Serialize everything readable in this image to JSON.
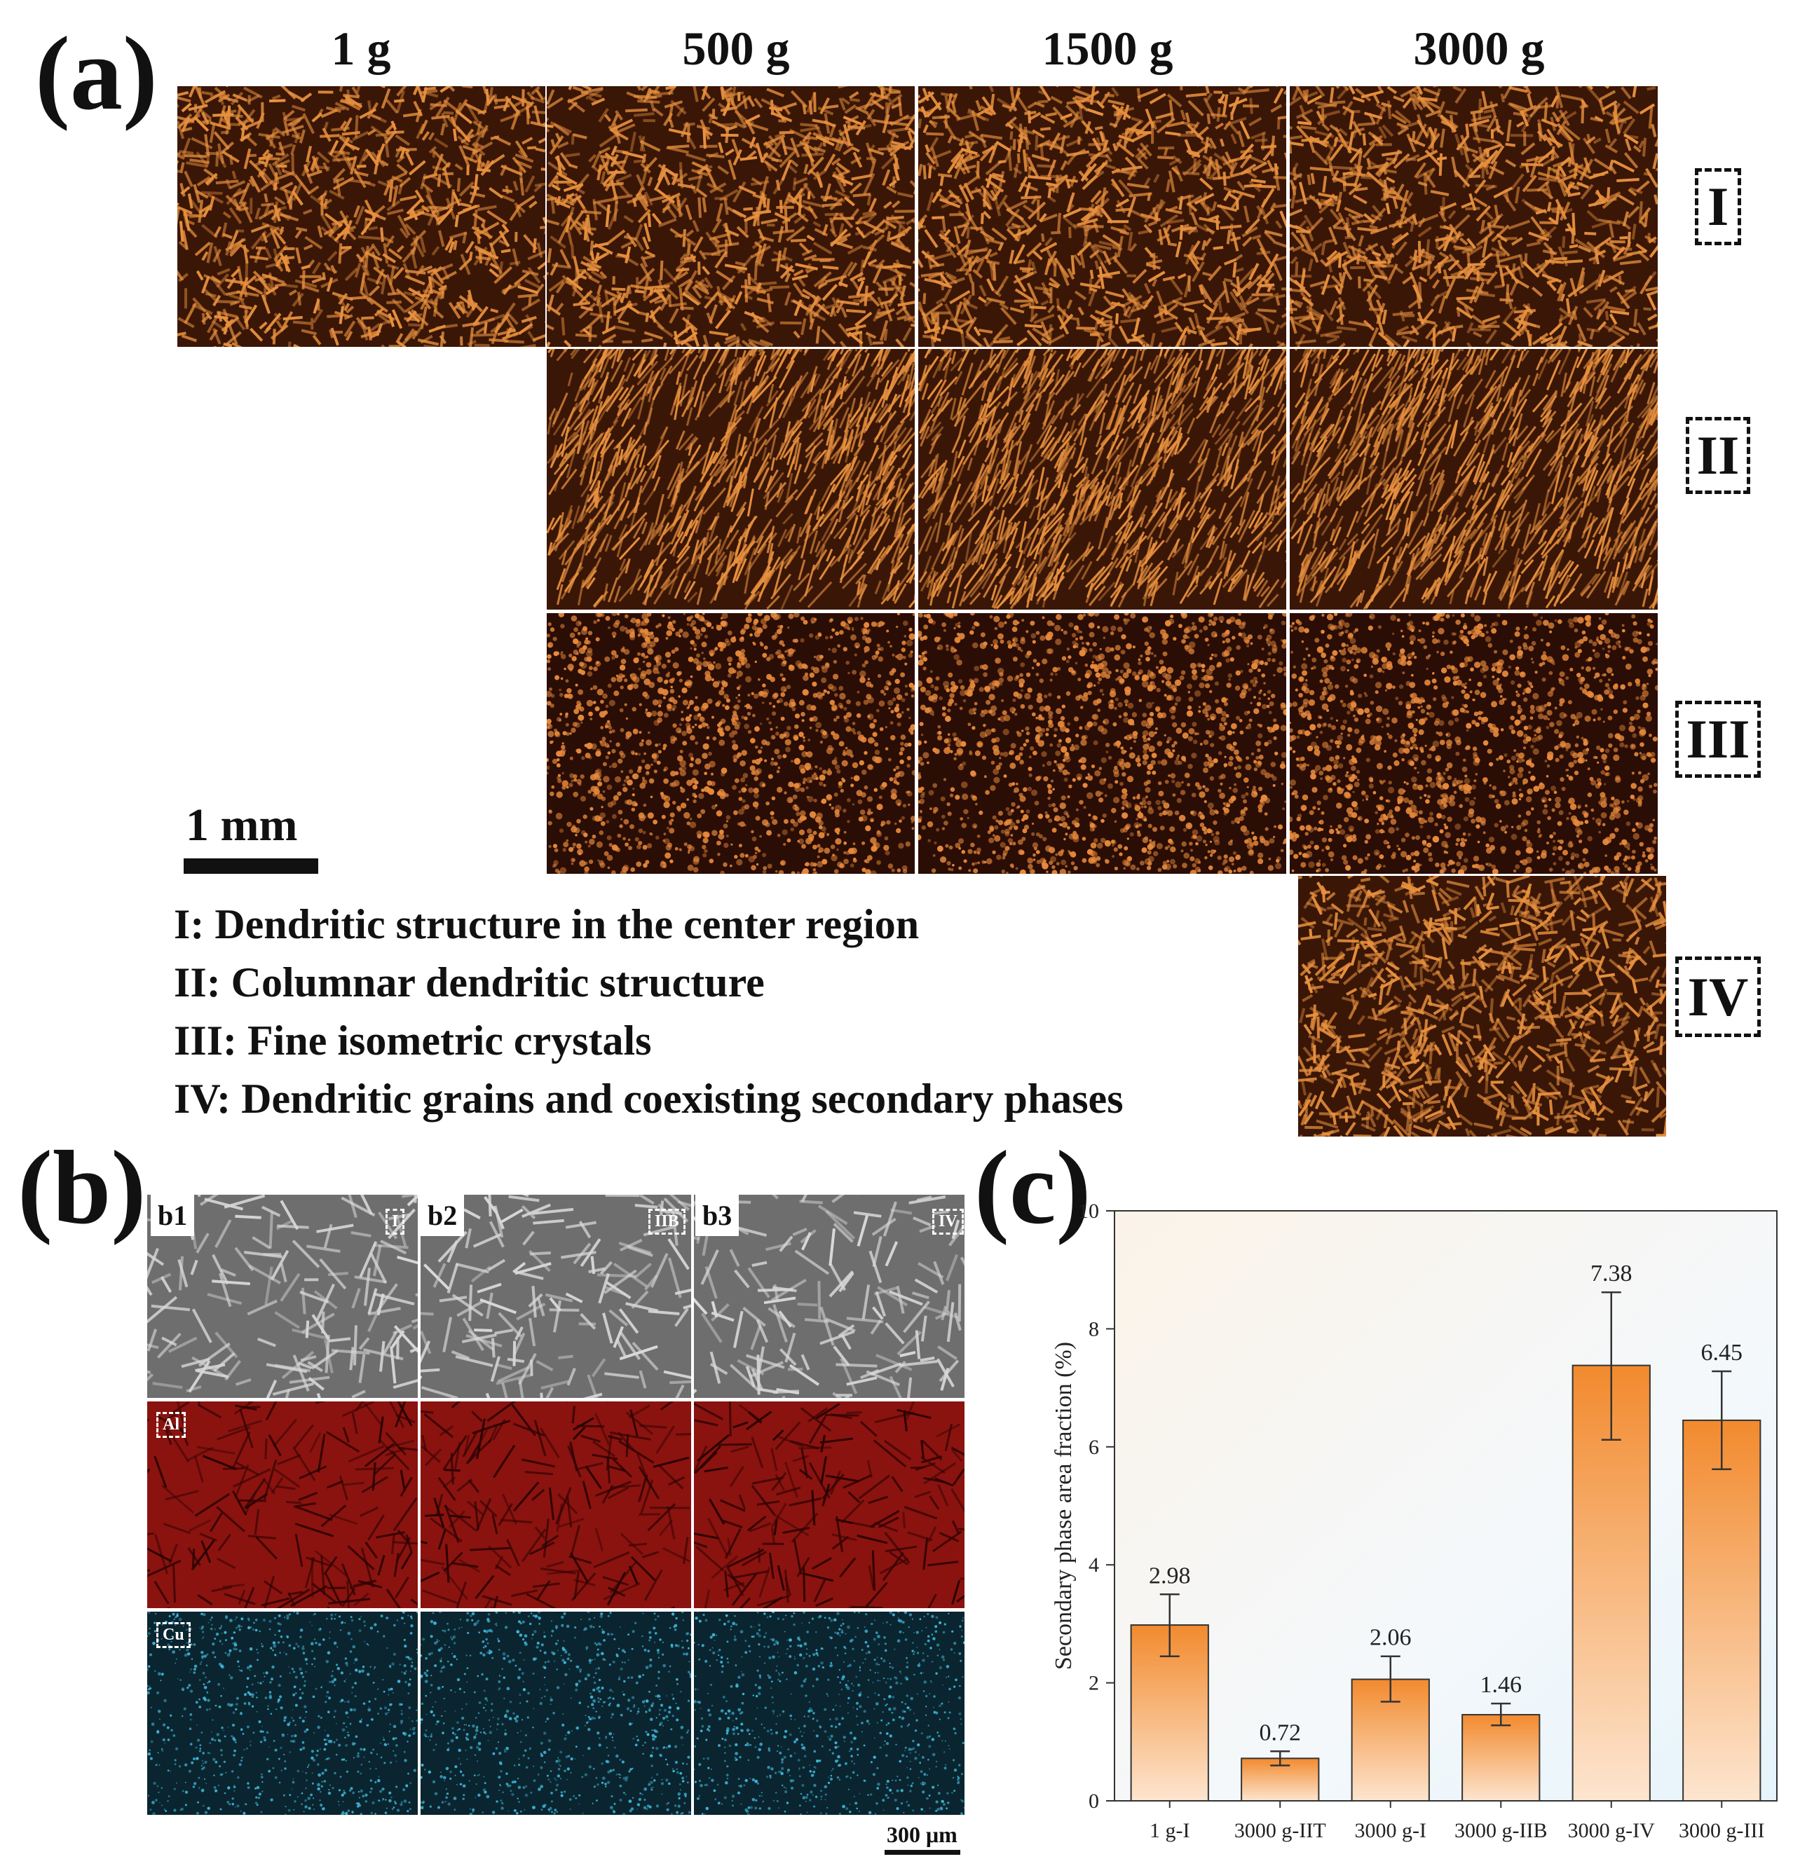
{
  "panel_a": {
    "label": "(a)",
    "columns": [
      "1 g",
      "500 g",
      "1500 g",
      "3000 g"
    ],
    "regions": [
      "I",
      "II",
      "III",
      "IV"
    ],
    "scale_bar": "1 mm",
    "legend": [
      "I: Dendritic structure in the center region",
      "II: Columnar dendritic structure",
      "III: Fine isometric crystals",
      "IV: Dendritic grains and coexisting secondary phases"
    ],
    "tile_color": "#b86a2a"
  },
  "panel_b": {
    "label": "(b)",
    "columns": [
      "b1",
      "b2",
      "b3"
    ],
    "regions": [
      "I",
      "IIB",
      "IV"
    ],
    "rows": [
      "Al",
      "Cu"
    ],
    "scale_bar": "300 μm",
    "colors": {
      "sem": "#6f6f6f",
      "al": "#8e1410",
      "cu": "#0a2a35"
    }
  },
  "panel_c": {
    "label": "(c)"
  },
  "chart_data": {
    "type": "bar",
    "categories": [
      "1 g-I",
      "3000 g-IIT",
      "3000 g-I",
      "3000 g-IIB",
      "3000 g-IV",
      "3000 g-III"
    ],
    "values": [
      2.98,
      0.72,
      2.06,
      1.46,
      7.38,
      6.45
    ],
    "errors_upper": [
      3.5,
      0.84,
      2.45,
      1.65,
      8.62,
      7.28
    ],
    "errors_lower": [
      2.45,
      0.6,
      1.68,
      1.28,
      6.12,
      5.62
    ],
    "data_labels": [
      "2.98",
      "0.72",
      "2.06",
      "1.46",
      "7.38",
      "6.45"
    ],
    "ylabel": "Secondary phase area fraction (%)",
    "xlabel": "",
    "ylim": [
      0,
      10
    ],
    "yticks": [
      0,
      2,
      4,
      6,
      8,
      10
    ],
    "bar_color": "#f29a45"
  }
}
